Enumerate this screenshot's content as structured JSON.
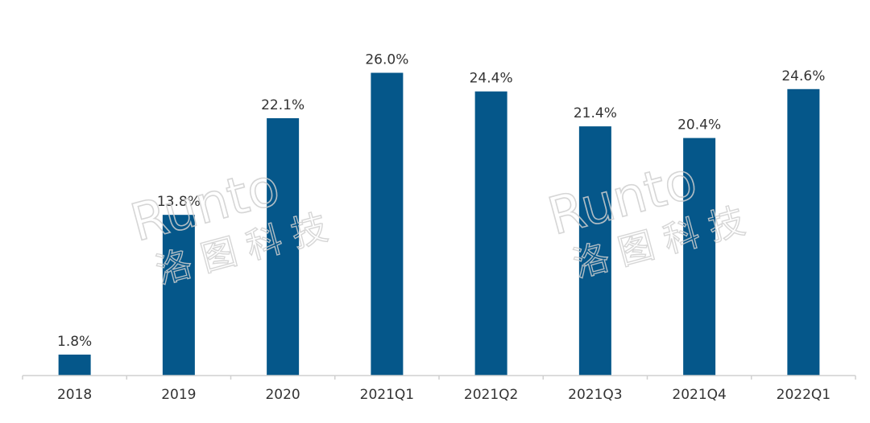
{
  "chart_data": {
    "type": "bar",
    "categories": [
      "2018",
      "2019",
      "2020",
      "2021Q1",
      "2021Q2",
      "2021Q3",
      "2021Q4",
      "2022Q1"
    ],
    "values": [
      1.8,
      13.8,
      22.1,
      26.0,
      24.4,
      21.4,
      20.4,
      24.6
    ],
    "data_labels": [
      "1.8%",
      "13.8%",
      "22.1%",
      "26.0%",
      "24.4%",
      "21.4%",
      "20.4%",
      "24.6%"
    ],
    "title": "",
    "xlabel": "",
    "ylabel": "",
    "ylim": [
      0,
      28
    ],
    "grid": false,
    "bar_color": "#05578a",
    "axis_color": "#d0d0d0"
  },
  "watermark": {
    "brand": "Runto",
    "brand_cn": "洛图科技",
    "color": "#cfcfcf"
  }
}
